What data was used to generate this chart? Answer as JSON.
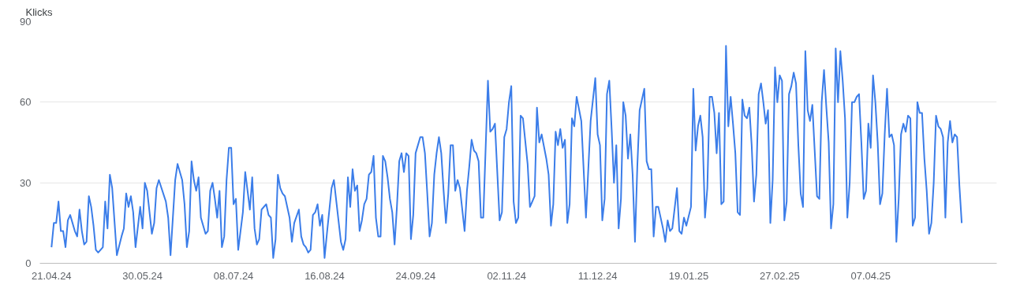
{
  "chart_data": {
    "type": "line",
    "ylabel": "Klicks",
    "x": [
      "2024-04-21",
      "2024-04-22",
      "2024-04-23",
      "2024-04-24",
      "2024-04-25",
      "2024-04-26",
      "2024-04-27",
      "2024-04-28",
      "2024-04-29",
      "2024-05-01",
      "2024-05-02",
      "2024-05-03",
      "2024-05-04",
      "2024-05-05",
      "2024-05-06",
      "2024-05-07",
      "2024-05-08",
      "2024-05-09",
      "2024-05-10",
      "2024-05-11",
      "2024-05-13",
      "2024-05-14",
      "2024-05-15",
      "2024-05-16",
      "2024-05-17",
      "2024-05-19",
      "2024-05-21",
      "2024-05-22",
      "2024-05-23",
      "2024-05-24",
      "2024-05-25",
      "2024-05-26",
      "2024-05-27",
      "2024-05-29",
      "2024-05-30",
      "2024-05-31",
      "2024-06-01",
      "2024-06-03",
      "2024-06-04",
      "2024-06-05",
      "2024-06-06",
      "2024-06-09",
      "2024-06-10",
      "2024-06-11",
      "2024-06-13",
      "2024-06-14",
      "2024-06-16",
      "2024-06-17",
      "2024-06-18",
      "2024-06-19",
      "2024-06-20",
      "2024-06-21",
      "2024-06-22",
      "2024-06-23",
      "2024-06-24",
      "2024-06-26",
      "2024-06-27",
      "2024-06-28",
      "2024-06-29",
      "2024-06-30",
      "2024-07-01",
      "2024-07-02",
      "2024-07-03",
      "2024-07-04",
      "2024-07-05",
      "2024-07-06",
      "2024-07-07",
      "2024-07-08",
      "2024-07-09",
      "2024-07-10",
      "2024-07-12",
      "2024-07-13",
      "2024-07-15",
      "2024-07-16",
      "2024-07-17",
      "2024-07-18",
      "2024-07-19",
      "2024-07-20",
      "2024-07-22",
      "2024-07-23",
      "2024-07-24",
      "2024-07-25",
      "2024-07-26",
      "2024-07-27",
      "2024-07-28",
      "2024-07-29",
      "2024-07-30",
      "2024-08-01",
      "2024-08-02",
      "2024-08-03",
      "2024-08-05",
      "2024-08-06",
      "2024-08-07",
      "2024-08-08",
      "2024-08-09",
      "2024-08-10",
      "2024-08-11",
      "2024-08-12",
      "2024-08-13",
      "2024-08-14",
      "2024-08-15",
      "2024-08-16",
      "2024-08-17",
      "2024-08-19",
      "2024-08-20",
      "2024-08-23",
      "2024-08-24",
      "2024-08-25",
      "2024-08-26",
      "2024-08-27",
      "2024-08-28",
      "2024-08-29",
      "2024-08-30",
      "2024-08-31",
      "2024-09-01",
      "2024-09-02",
      "2024-09-03",
      "2024-09-04",
      "2024-09-05",
      "2024-09-06",
      "2024-09-07",
      "2024-09-08",
      "2024-09-09",
      "2024-09-10",
      "2024-09-11",
      "2024-09-12",
      "2024-09-13",
      "2024-09-14",
      "2024-09-15",
      "2024-09-16",
      "2024-09-17",
      "2024-09-18",
      "2024-09-19",
      "2024-09-20",
      "2024-09-21",
      "2024-09-22",
      "2024-09-23",
      "2024-09-24",
      "2024-09-26",
      "2024-09-27",
      "2024-09-28",
      "2024-09-29",
      "2024-09-30",
      "2024-10-01",
      "2024-10-02",
      "2024-10-03",
      "2024-10-04",
      "2024-10-05",
      "2024-10-06",
      "2024-10-07",
      "2024-10-08",
      "2024-10-09",
      "2024-10-10",
      "2024-10-11",
      "2024-10-12",
      "2024-10-13",
      "2024-10-15",
      "2024-10-16",
      "2024-10-17",
      "2024-10-18",
      "2024-10-19",
      "2024-10-20",
      "2024-10-21",
      "2024-10-22",
      "2024-10-23",
      "2024-10-25",
      "2024-10-26",
      "2024-10-27",
      "2024-10-28",
      "2024-10-30",
      "2024-10-31",
      "2024-11-01",
      "2024-11-02",
      "2024-11-03",
      "2024-11-04",
      "2024-11-05",
      "2024-11-06",
      "2024-11-07",
      "2024-11-08",
      "2024-11-09",
      "2024-11-11",
      "2024-11-12",
      "2024-11-13",
      "2024-11-14",
      "2024-11-15",
      "2024-11-16",
      "2024-11-17",
      "2024-11-19",
      "2024-11-20",
      "2024-11-21",
      "2024-11-22",
      "2024-11-23",
      "2024-11-24",
      "2024-11-25",
      "2024-11-26",
      "2024-11-27",
      "2024-11-28",
      "2024-11-29",
      "2024-11-30",
      "2024-12-01",
      "2024-12-02",
      "2024-12-04",
      "2024-12-06",
      "2024-12-08",
      "2024-12-10",
      "2024-12-11",
      "2024-12-12",
      "2024-12-13",
      "2024-12-14",
      "2024-12-15",
      "2024-12-16",
      "2024-12-17",
      "2024-12-18",
      "2024-12-19",
      "2024-12-20",
      "2024-12-21",
      "2024-12-22",
      "2024-12-23",
      "2024-12-24",
      "2024-12-25",
      "2024-12-26",
      "2024-12-27",
      "2024-12-28",
      "2024-12-29",
      "2024-12-31",
      "2025-01-01",
      "2025-01-02",
      "2025-01-03",
      "2025-01-04",
      "2025-01-05",
      "2025-01-06",
      "2025-01-08",
      "2025-01-09",
      "2025-01-10",
      "2025-01-11",
      "2025-01-12",
      "2025-01-14",
      "2025-01-15",
      "2025-01-16",
      "2025-01-17",
      "2025-01-18",
      "2025-01-20",
      "2025-01-21",
      "2025-01-22",
      "2025-01-23",
      "2025-01-24",
      "2025-01-25",
      "2025-01-26",
      "2025-01-27",
      "2025-01-28",
      "2025-01-29",
      "2025-01-30",
      "2025-01-31",
      "2025-02-01",
      "2025-02-02",
      "2025-02-03",
      "2025-02-04",
      "2025-02-05",
      "2025-02-06",
      "2025-02-07",
      "2025-02-08",
      "2025-02-09",
      "2025-02-10",
      "2025-02-11",
      "2025-02-12",
      "2025-02-13",
      "2025-02-14",
      "2025-02-15",
      "2025-02-16",
      "2025-02-17",
      "2025-02-18",
      "2025-02-19",
      "2025-02-20",
      "2025-02-21",
      "2025-02-22",
      "2025-02-23",
      "2025-02-24",
      "2025-02-25",
      "2025-02-26",
      "2025-02-27",
      "2025-02-28",
      "2025-03-01",
      "2025-03-02",
      "2025-03-03",
      "2025-03-04",
      "2025-03-05",
      "2025-03-06",
      "2025-03-07",
      "2025-03-08",
      "2025-03-09",
      "2025-03-10",
      "2025-03-11",
      "2025-03-12",
      "2025-03-13",
      "2025-03-14",
      "2025-03-15",
      "2025-03-16",
      "2025-03-17",
      "2025-03-18",
      "2025-03-19",
      "2025-03-20",
      "2025-03-21",
      "2025-03-22",
      "2025-03-23",
      "2025-03-24",
      "2025-03-25",
      "2025-03-26",
      "2025-03-27",
      "2025-03-28",
      "2025-03-29",
      "2025-03-30",
      "2025-03-31",
      "2025-04-01",
      "2025-04-02",
      "2025-04-03",
      "2025-04-04",
      "2025-04-05",
      "2025-04-06",
      "2025-04-07",
      "2025-04-08",
      "2025-04-09",
      "2025-04-10",
      "2025-04-11",
      "2025-04-12",
      "2025-04-13",
      "2025-04-14",
      "2025-04-15",
      "2025-04-16",
      "2025-04-17",
      "2025-04-18",
      "2025-04-19",
      "2025-04-20",
      "2025-04-21",
      "2025-04-22",
      "2025-04-23",
      "2025-04-24",
      "2025-04-25",
      "2025-04-26",
      "2025-04-27",
      "2025-04-28",
      "2025-04-29",
      "2025-04-30",
      "2025-05-01",
      "2025-05-02",
      "2025-05-03",
      "2025-05-04",
      "2025-05-05",
      "2025-05-06",
      "2025-05-07",
      "2025-05-08",
      "2025-05-09",
      "2025-05-10",
      "2025-05-11",
      "2025-05-12",
      "2025-05-13",
      "2025-05-14",
      "2025-05-15",
      "2025-05-16"
    ],
    "series": [
      {
        "color": "#3b7de9",
        "values": [
          6,
          15,
          15,
          23,
          12,
          12,
          6,
          16,
          18,
          12,
          10,
          20,
          12,
          7,
          8,
          25,
          21,
          14,
          5,
          4,
          6,
          23,
          13,
          33,
          28,
          3,
          10,
          13,
          26,
          21,
          25,
          19,
          6,
          21,
          13,
          30,
          27,
          11,
          15,
          28,
          31,
          23,
          17,
          3,
          31,
          37,
          31,
          22,
          6,
          12,
          38,
          31,
          27,
          32,
          17,
          11,
          12,
          27,
          30,
          24,
          17,
          27,
          6,
          10,
          31,
          43,
          43,
          22,
          24,
          5,
          19,
          34,
          20,
          32,
          13,
          7,
          9,
          20,
          22,
          18,
          17,
          2,
          9,
          33,
          28,
          26,
          25,
          17,
          8,
          15,
          20,
          10,
          7,
          6,
          4,
          5,
          18,
          19,
          22,
          14,
          18,
          2,
          11,
          28,
          31,
          8,
          5,
          9,
          32,
          21,
          35,
          27,
          29,
          12,
          16,
          22,
          24,
          33,
          34,
          40,
          17,
          10,
          10,
          40,
          38,
          32,
          24,
          19,
          7,
          21,
          38,
          41,
          34,
          41,
          40,
          9,
          18,
          41,
          47,
          47,
          41,
          26,
          10,
          15,
          33,
          41,
          47,
          41,
          27,
          15,
          26,
          44,
          44,
          27,
          31,
          28,
          12,
          27,
          36,
          46,
          42,
          41,
          38,
          17,
          17,
          68,
          49,
          50,
          52,
          16,
          19,
          47,
          50,
          60,
          66,
          23,
          15,
          17,
          55,
          54,
          37,
          21,
          23,
          25,
          58,
          45,
          48,
          39,
          33,
          14,
          22,
          49,
          44,
          50,
          43,
          46,
          15,
          22,
          54,
          51,
          62,
          53,
          17,
          53,
          69,
          48,
          44,
          16,
          24,
          63,
          68,
          50,
          30,
          44,
          13,
          24,
          60,
          55,
          39,
          48,
          33,
          8,
          36,
          57,
          65,
          38,
          35,
          35,
          10,
          21,
          21,
          13,
          8,
          16,
          12,
          13,
          28,
          12,
          11,
          17,
          14,
          21,
          65,
          42,
          51,
          55,
          47,
          17,
          28,
          62,
          62,
          56,
          41,
          56,
          22,
          23,
          81,
          51,
          62,
          52,
          41,
          19,
          18,
          61,
          55,
          54,
          58,
          44,
          23,
          33,
          63,
          67,
          60,
          52,
          57,
          15,
          31,
          73,
          60,
          70,
          68,
          16,
          23,
          63,
          66,
          71,
          67,
          44,
          26,
          21,
          79,
          57,
          53,
          59,
          42,
          25,
          24,
          60,
          72,
          58,
          45,
          13,
          22,
          80,
          60,
          79,
          68,
          54,
          17,
          30,
          60,
          60,
          62,
          63,
          45,
          24,
          27,
          52,
          43,
          70,
          60,
          45,
          22,
          26,
          48,
          65,
          47,
          48,
          44,
          8,
          24,
          48,
          52,
          49,
          55,
          54,
          14,
          17,
          60,
          56,
          56,
          39,
          27,
          11,
          15,
          30,
          55,
          51,
          50,
          47,
          17,
          45,
          53,
          45,
          48,
          47,
          29,
          15
        ]
      }
    ],
    "xlim": [
      "2024-04-16",
      "2025-05-31"
    ],
    "xticks": [
      {
        "value": "2024-04-21",
        "label": "21.04.24"
      },
      {
        "value": "2024-05-30",
        "label": "30.05.24"
      },
      {
        "value": "2024-07-08",
        "label": "08.07.24"
      },
      {
        "value": "2024-08-16",
        "label": "16.08.24"
      },
      {
        "value": "2024-09-24",
        "label": "24.09.24"
      },
      {
        "value": "2024-11-02",
        "label": "02.11.24"
      },
      {
        "value": "2024-12-11",
        "label": "11.12.24"
      },
      {
        "value": "2025-01-19",
        "label": "19.01.25"
      },
      {
        "value": "2025-02-27",
        "label": "27.02.25"
      },
      {
        "value": "2025-04-07",
        "label": "07.04.25"
      }
    ],
    "ylim": [
      0,
      90
    ],
    "yticks": [
      0,
      30,
      60,
      90
    ],
    "grid": "y"
  }
}
